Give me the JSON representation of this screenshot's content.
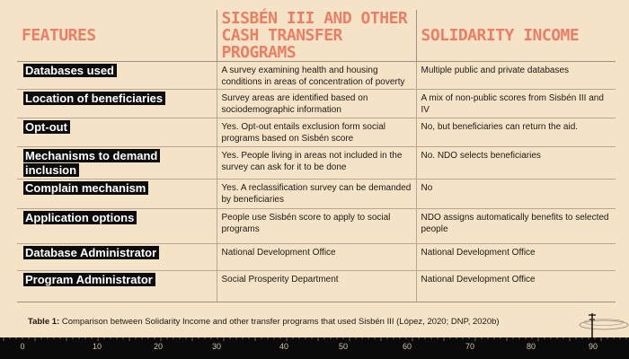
{
  "table": {
    "headers": [
      "FEATURES",
      "SISBÉN III AND OTHER CASH TRANSFER PROGRAMS",
      "SOLIDARITY INCOME"
    ],
    "rows": [
      {
        "feature": "Databases used",
        "sisben": "A survey examining health and housing conditions in areas of concentration of poverty",
        "solidarity": "Multiple public and private databases"
      },
      {
        "feature": "Location of beneficiaries",
        "sisben": "Survey areas are identified based on sociodemographic information",
        "solidarity": "A mix of non-public scores from Sisbén III and IV"
      },
      {
        "feature": "Opt-out",
        "sisben": "Yes. Opt-out entails exclusion form social programs based on Sisbén score",
        "solidarity": "No, but beneficiaries can return the aid."
      },
      {
        "feature": "Mechanisms to demand inclusion",
        "sisben": "Yes. People living in areas not included in the survey can ask for it to be done",
        "solidarity": "No. NDO selects beneficiaries"
      },
      {
        "feature": "Complain mechanism",
        "sisben": "Yes. A reclassification survey can be demanded by beneficiaries",
        "solidarity": "No"
      },
      {
        "feature": "Application options",
        "sisben": "People use Sisbén score to apply to social programs",
        "solidarity": "NDO assigns automatically benefits to selected people"
      },
      {
        "feature": "Database Administrator",
        "sisben": "National Development Office",
        "solidarity": "National Development Office"
      },
      {
        "feature": "Program Administrator",
        "sisben": "Social Prosperity Department",
        "solidarity": "National Development Office"
      }
    ]
  },
  "caption": {
    "label": "Table 1:",
    "text": "Comparison between Solidarity Income and other transfer programs that used Sisbén III (López, 2020; DNP, 2020b)"
  },
  "ruler": {
    "labels": [
      "0",
      "10",
      "20",
      "30",
      "40",
      "50",
      "60",
      "70",
      "80",
      "90"
    ]
  },
  "colors": {
    "background": "#f4e3c6",
    "header_text": "#ea7f66",
    "highlight": "#0c0c0c",
    "ruler": "#0a0a0a"
  }
}
